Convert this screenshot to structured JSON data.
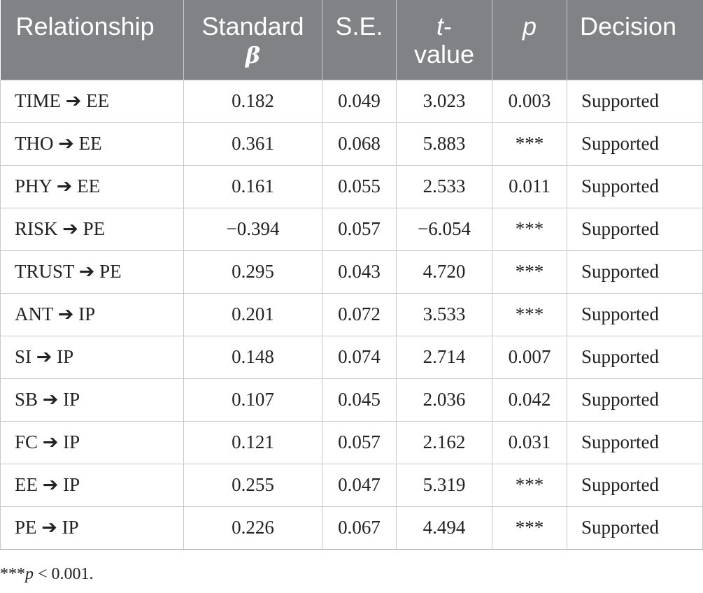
{
  "table": {
    "headers": {
      "relationship": "Relationship",
      "standard_line1": "Standard",
      "standard_beta": "β",
      "se": "S.E.",
      "t_line1": "t",
      "t_dash": "-",
      "t_line2": "value",
      "p": "p",
      "decision": "Decision"
    },
    "rows": [
      {
        "relationship": "TIME ➔ EE",
        "beta": "0.182",
        "se": "0.049",
        "t": "3.023",
        "p": "0.003",
        "decision": "Supported"
      },
      {
        "relationship": "THO ➔ EE",
        "beta": "0.361",
        "se": "0.068",
        "t": "5.883",
        "p": "***",
        "decision": "Supported"
      },
      {
        "relationship": "PHY ➔ EE",
        "beta": "0.161",
        "se": "0.055",
        "t": "2.533",
        "p": "0.011",
        "decision": "Supported"
      },
      {
        "relationship": "RISK ➔ PE",
        "beta": "−0.394",
        "se": "0.057",
        "t": "−6.054",
        "p": "***",
        "decision": "Supported"
      },
      {
        "relationship": "TRUST ➔ PE",
        "beta": "0.295",
        "se": "0.043",
        "t": "4.720",
        "p": "***",
        "decision": "Supported"
      },
      {
        "relationship": "ANT ➔ IP",
        "beta": "0.201",
        "se": "0.072",
        "t": "3.533",
        "p": "***",
        "decision": "Supported"
      },
      {
        "relationship": "SI ➔ IP",
        "beta": "0.148",
        "se": "0.074",
        "t": "2.714",
        "p": "0.007",
        "decision": "Supported"
      },
      {
        "relationship": "SB ➔ IP",
        "beta": "0.107",
        "se": "0.045",
        "t": "2.036",
        "p": "0.042",
        "decision": "Supported"
      },
      {
        "relationship": "FC ➔ IP",
        "beta": "0.121",
        "se": "0.057",
        "t": "2.162",
        "p": "0.031",
        "decision": "Supported"
      },
      {
        "relationship": "EE ➔ IP",
        "beta": "0.255",
        "se": "0.047",
        "t": "5.319",
        "p": "***",
        "decision": "Supported"
      },
      {
        "relationship": "PE ➔ IP",
        "beta": "0.226",
        "se": "0.067",
        "t": "4.494",
        "p": "***",
        "decision": "Supported"
      }
    ]
  },
  "footnote": {
    "stars": "***",
    "p": "p",
    "rest": " < 0.001."
  }
}
